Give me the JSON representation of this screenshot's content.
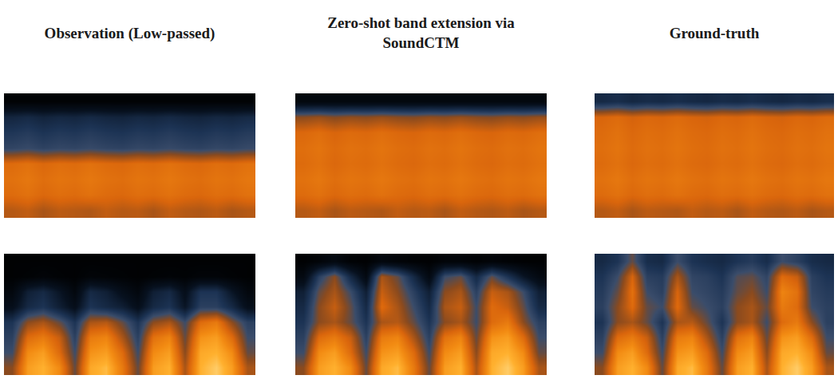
{
  "column_titles": [
    "Observation (Low-passed)",
    "Zero-shot band extension via SoundCTM",
    "Ground-truth"
  ],
  "chart_data": [
    {
      "type": "heatmap",
      "tick_labels": false,
      "zlim": [
        0,
        1
      ],
      "cells": [
        [
          0.62,
          0.64,
          0.6,
          0.63,
          0.62,
          0.61,
          0.64,
          0.62,
          0.63,
          0.6,
          0.64,
          0.62,
          0.61,
          0.63,
          0.6,
          0.62
        ],
        [
          0.7,
          0.72,
          0.69,
          0.71,
          0.7,
          0.72,
          0.7,
          0.69,
          0.71,
          0.7,
          0.72,
          0.7,
          0.69,
          0.71,
          0.7,
          0.72
        ],
        [
          0.72,
          0.74,
          0.71,
          0.73,
          0.72,
          0.74,
          0.72,
          0.71,
          0.73,
          0.72,
          0.74,
          0.72,
          0.71,
          0.73,
          0.72,
          0.74
        ],
        [
          0.7,
          0.72,
          0.69,
          0.71,
          0.7,
          0.72,
          0.7,
          0.69,
          0.71,
          0.7,
          0.72,
          0.7,
          0.69,
          0.71,
          0.7,
          0.72
        ],
        [
          0.42,
          0.44,
          0.41,
          0.43,
          0.42,
          0.44,
          0.42,
          0.41,
          0.43,
          0.42,
          0.44,
          0.42,
          0.41,
          0.43,
          0.42,
          0.44
        ],
        [
          0.36,
          0.38,
          0.35,
          0.37,
          0.36,
          0.38,
          0.36,
          0.35,
          0.37,
          0.36,
          0.38,
          0.36,
          0.35,
          0.37,
          0.36,
          0.38
        ],
        [
          0.28,
          0.3,
          0.27,
          0.29,
          0.28,
          0.3,
          0.28,
          0.27,
          0.29,
          0.28,
          0.3,
          0.28,
          0.27,
          0.29,
          0.28,
          0.3
        ],
        [
          0.03,
          0.03,
          0.03,
          0.03,
          0.03,
          0.03,
          0.03,
          0.03,
          0.03,
          0.03,
          0.03,
          0.03,
          0.03,
          0.03,
          0.03,
          0.03
        ]
      ]
    },
    {
      "type": "heatmap",
      "tick_labels": false,
      "zlim": [
        0,
        1
      ],
      "cells": [
        [
          0.62,
          0.64,
          0.6,
          0.63,
          0.62,
          0.61,
          0.64,
          0.62,
          0.63,
          0.6,
          0.64,
          0.62,
          0.61,
          0.63,
          0.6,
          0.62
        ],
        [
          0.7,
          0.72,
          0.69,
          0.71,
          0.7,
          0.72,
          0.7,
          0.69,
          0.71,
          0.7,
          0.72,
          0.7,
          0.69,
          0.71,
          0.7,
          0.72
        ],
        [
          0.72,
          0.74,
          0.71,
          0.73,
          0.72,
          0.74,
          0.72,
          0.71,
          0.73,
          0.72,
          0.74,
          0.72,
          0.71,
          0.73,
          0.72,
          0.74
        ],
        [
          0.7,
          0.72,
          0.69,
          0.71,
          0.7,
          0.72,
          0.7,
          0.69,
          0.71,
          0.7,
          0.72,
          0.7,
          0.69,
          0.71,
          0.7,
          0.72
        ],
        [
          0.71,
          0.73,
          0.7,
          0.72,
          0.71,
          0.73,
          0.71,
          0.7,
          0.72,
          0.71,
          0.73,
          0.71,
          0.7,
          0.72,
          0.71,
          0.73
        ],
        [
          0.69,
          0.71,
          0.68,
          0.7,
          0.69,
          0.71,
          0.69,
          0.68,
          0.7,
          0.69,
          0.71,
          0.69,
          0.68,
          0.7,
          0.69,
          0.71
        ],
        [
          0.55,
          0.57,
          0.54,
          0.56,
          0.55,
          0.57,
          0.55,
          0.54,
          0.56,
          0.55,
          0.57,
          0.55,
          0.54,
          0.56,
          0.55,
          0.57
        ],
        [
          0.08,
          0.08,
          0.08,
          0.08,
          0.08,
          0.08,
          0.08,
          0.08,
          0.08,
          0.08,
          0.08,
          0.08,
          0.08,
          0.08,
          0.08,
          0.08
        ]
      ]
    },
    {
      "type": "heatmap",
      "tick_labels": false,
      "zlim": [
        0,
        1
      ],
      "cells": [
        [
          0.62,
          0.64,
          0.6,
          0.63,
          0.62,
          0.61,
          0.64,
          0.62,
          0.63,
          0.6,
          0.64,
          0.62,
          0.61,
          0.63,
          0.6,
          0.62
        ],
        [
          0.7,
          0.72,
          0.69,
          0.71,
          0.7,
          0.72,
          0.7,
          0.69,
          0.71,
          0.7,
          0.72,
          0.7,
          0.69,
          0.71,
          0.7,
          0.72
        ],
        [
          0.72,
          0.74,
          0.71,
          0.73,
          0.72,
          0.74,
          0.72,
          0.71,
          0.73,
          0.72,
          0.74,
          0.72,
          0.71,
          0.73,
          0.72,
          0.74
        ],
        [
          0.7,
          0.72,
          0.69,
          0.71,
          0.7,
          0.72,
          0.7,
          0.69,
          0.71,
          0.7,
          0.72,
          0.7,
          0.69,
          0.71,
          0.7,
          0.72
        ],
        [
          0.71,
          0.73,
          0.7,
          0.72,
          0.71,
          0.73,
          0.71,
          0.7,
          0.72,
          0.71,
          0.73,
          0.71,
          0.7,
          0.72,
          0.71,
          0.73
        ],
        [
          0.7,
          0.72,
          0.69,
          0.71,
          0.7,
          0.72,
          0.7,
          0.69,
          0.71,
          0.7,
          0.72,
          0.7,
          0.69,
          0.71,
          0.7,
          0.72
        ],
        [
          0.68,
          0.7,
          0.67,
          0.69,
          0.68,
          0.7,
          0.68,
          0.67,
          0.69,
          0.68,
          0.7,
          0.68,
          0.67,
          0.69,
          0.68,
          0.7
        ],
        [
          0.3,
          0.32,
          0.29,
          0.31,
          0.3,
          0.32,
          0.3,
          0.29,
          0.31,
          0.3,
          0.32,
          0.3,
          0.29,
          0.31,
          0.3,
          0.32
        ]
      ]
    },
    {
      "type": "heatmap",
      "tick_labels": false,
      "zlim": [
        0,
        1
      ],
      "cells": [
        [
          0.55,
          0.85,
          0.9,
          0.8,
          0.5,
          0.88,
          0.92,
          0.75,
          0.5,
          0.85,
          0.9,
          0.6,
          0.9,
          0.95,
          0.85,
          0.6
        ],
        [
          0.45,
          0.8,
          0.85,
          0.7,
          0.45,
          0.82,
          0.85,
          0.7,
          0.45,
          0.8,
          0.85,
          0.55,
          0.88,
          0.9,
          0.8,
          0.5
        ],
        [
          0.4,
          0.7,
          0.75,
          0.65,
          0.4,
          0.75,
          0.78,
          0.6,
          0.4,
          0.72,
          0.78,
          0.5,
          0.82,
          0.85,
          0.7,
          0.45
        ],
        [
          0.35,
          0.55,
          0.6,
          0.5,
          0.35,
          0.6,
          0.62,
          0.5,
          0.35,
          0.55,
          0.6,
          0.45,
          0.7,
          0.75,
          0.55,
          0.4
        ],
        [
          0.15,
          0.3,
          0.35,
          0.25,
          0.15,
          0.35,
          0.3,
          0.25,
          0.15,
          0.3,
          0.35,
          0.2,
          0.4,
          0.4,
          0.3,
          0.15
        ],
        [
          0.08,
          0.25,
          0.3,
          0.2,
          0.08,
          0.3,
          0.25,
          0.15,
          0.08,
          0.25,
          0.3,
          0.15,
          0.35,
          0.35,
          0.2,
          0.08
        ],
        [
          0.02,
          0.03,
          0.05,
          0.03,
          0.02,
          0.05,
          0.04,
          0.03,
          0.02,
          0.03,
          0.04,
          0.03,
          0.05,
          0.05,
          0.03,
          0.02
        ],
        [
          0.02,
          0.02,
          0.02,
          0.02,
          0.02,
          0.02,
          0.02,
          0.02,
          0.02,
          0.02,
          0.02,
          0.02,
          0.02,
          0.02,
          0.02,
          0.02
        ]
      ]
    },
    {
      "type": "heatmap",
      "tick_labels": false,
      "zlim": [
        0,
        1
      ],
      "cells": [
        [
          0.55,
          0.85,
          0.9,
          0.8,
          0.5,
          0.88,
          0.92,
          0.75,
          0.5,
          0.85,
          0.9,
          0.6,
          0.9,
          0.95,
          0.85,
          0.6
        ],
        [
          0.45,
          0.8,
          0.85,
          0.7,
          0.45,
          0.82,
          0.85,
          0.7,
          0.45,
          0.8,
          0.85,
          0.55,
          0.88,
          0.9,
          0.8,
          0.5
        ],
        [
          0.4,
          0.7,
          0.75,
          0.65,
          0.4,
          0.75,
          0.78,
          0.6,
          0.4,
          0.72,
          0.78,
          0.5,
          0.82,
          0.85,
          0.7,
          0.45
        ],
        [
          0.35,
          0.55,
          0.6,
          0.5,
          0.35,
          0.6,
          0.62,
          0.5,
          0.35,
          0.55,
          0.6,
          0.45,
          0.7,
          0.75,
          0.55,
          0.4
        ],
        [
          0.3,
          0.55,
          0.65,
          0.5,
          0.3,
          0.7,
          0.6,
          0.45,
          0.3,
          0.6,
          0.65,
          0.45,
          0.7,
          0.65,
          0.5,
          0.3
        ],
        [
          0.25,
          0.5,
          0.6,
          0.45,
          0.25,
          0.65,
          0.55,
          0.4,
          0.25,
          0.55,
          0.6,
          0.4,
          0.65,
          0.6,
          0.45,
          0.25
        ],
        [
          0.1,
          0.4,
          0.55,
          0.3,
          0.1,
          0.6,
          0.5,
          0.3,
          0.1,
          0.45,
          0.5,
          0.3,
          0.5,
          0.35,
          0.2,
          0.1
        ],
        [
          0.02,
          0.05,
          0.1,
          0.03,
          0.02,
          0.08,
          0.05,
          0.03,
          0.02,
          0.05,
          0.05,
          0.03,
          0.05,
          0.03,
          0.02,
          0.02
        ]
      ]
    },
    {
      "type": "heatmap",
      "tick_labels": false,
      "zlim": [
        0,
        1
      ],
      "cells": [
        [
          0.55,
          0.85,
          0.9,
          0.8,
          0.5,
          0.88,
          0.92,
          0.75,
          0.5,
          0.85,
          0.9,
          0.6,
          0.9,
          0.95,
          0.85,
          0.6
        ],
        [
          0.45,
          0.8,
          0.85,
          0.7,
          0.45,
          0.82,
          0.85,
          0.7,
          0.45,
          0.8,
          0.85,
          0.55,
          0.88,
          0.9,
          0.8,
          0.5
        ],
        [
          0.4,
          0.7,
          0.75,
          0.65,
          0.4,
          0.75,
          0.78,
          0.6,
          0.4,
          0.72,
          0.78,
          0.5,
          0.82,
          0.85,
          0.7,
          0.45
        ],
        [
          0.35,
          0.55,
          0.6,
          0.5,
          0.35,
          0.6,
          0.62,
          0.5,
          0.35,
          0.55,
          0.6,
          0.45,
          0.7,
          0.75,
          0.55,
          0.4
        ],
        [
          0.4,
          0.55,
          0.7,
          0.5,
          0.45,
          0.7,
          0.5,
          0.45,
          0.4,
          0.55,
          0.6,
          0.5,
          0.75,
          0.7,
          0.45,
          0.4
        ],
        [
          0.38,
          0.5,
          0.72,
          0.45,
          0.4,
          0.68,
          0.45,
          0.42,
          0.38,
          0.5,
          0.55,
          0.45,
          0.78,
          0.72,
          0.42,
          0.38
        ],
        [
          0.35,
          0.45,
          0.68,
          0.4,
          0.38,
          0.6,
          0.42,
          0.4,
          0.35,
          0.48,
          0.5,
          0.42,
          0.7,
          0.65,
          0.4,
          0.35
        ],
        [
          0.3,
          0.35,
          0.5,
          0.32,
          0.3,
          0.45,
          0.35,
          0.32,
          0.3,
          0.35,
          0.38,
          0.32,
          0.45,
          0.4,
          0.32,
          0.3
        ]
      ]
    }
  ]
}
